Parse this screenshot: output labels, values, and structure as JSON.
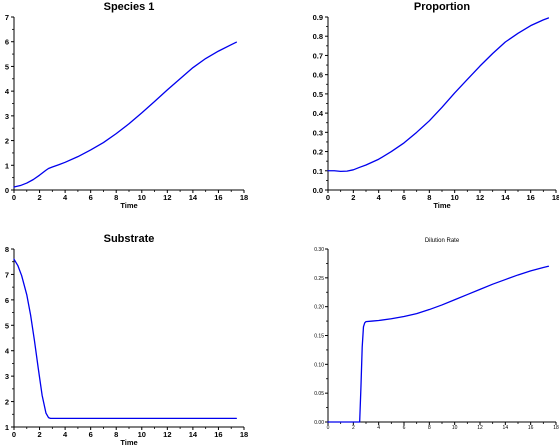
{
  "chart_data": [
    {
      "type": "line",
      "title": "Species 1",
      "xlabel": "Time",
      "ylabel": "",
      "xlim": [
        0,
        18
      ],
      "ylim": [
        0,
        7
      ],
      "xticks": [
        "0",
        "2",
        "4",
        "6",
        "8",
        "10",
        "12",
        "14",
        "16",
        "18"
      ],
      "yticks": [
        "0",
        "1",
        "2",
        "3",
        "4",
        "5",
        "6",
        "7"
      ],
      "color": "#0000ee",
      "series": [
        {
          "x": [
            0,
            0.5,
            1.0,
            1.5,
            2.0,
            2.5,
            2.7,
            3.0,
            3.5,
            4.0,
            5.0,
            6.0,
            7.0,
            8.0,
            9.0,
            10.0,
            11.0,
            12.0,
            13.0,
            14.0,
            15.0,
            16.0,
            17.0,
            17.4
          ],
          "y": [
            0.12,
            0.18,
            0.28,
            0.42,
            0.6,
            0.8,
            0.87,
            0.93,
            1.02,
            1.12,
            1.35,
            1.62,
            1.92,
            2.28,
            2.68,
            3.12,
            3.58,
            4.05,
            4.5,
            4.95,
            5.32,
            5.62,
            5.88,
            5.98
          ]
        }
      ]
    },
    {
      "type": "line",
      "title": "Proportion",
      "xlabel": "Time",
      "ylabel": "",
      "xlim": [
        0,
        18
      ],
      "ylim": [
        0,
        0.9
      ],
      "xticks": [
        "0",
        "2",
        "4",
        "6",
        "8",
        "10",
        "12",
        "14",
        "16",
        "18"
      ],
      "yticks": [
        "0.0",
        "0.1",
        "0.2",
        "0.3",
        "0.4",
        "0.5",
        "0.6",
        "0.7",
        "0.8",
        "0.9"
      ],
      "color": "#0000ee",
      "series": [
        {
          "x": [
            0,
            0.5,
            1.0,
            1.5,
            2.0,
            2.5,
            3.0,
            4.0,
            5.0,
            6.0,
            7.0,
            8.0,
            9.0,
            10.0,
            11.0,
            12.0,
            13.0,
            14.0,
            15.0,
            16.0,
            17.0,
            17.4
          ],
          "y": [
            0.1,
            0.1,
            0.097,
            0.098,
            0.105,
            0.118,
            0.13,
            0.16,
            0.2,
            0.245,
            0.3,
            0.36,
            0.43,
            0.505,
            0.575,
            0.645,
            0.71,
            0.77,
            0.815,
            0.855,
            0.885,
            0.895
          ]
        }
      ]
    },
    {
      "type": "line",
      "title": "Substrate",
      "xlabel": "Time",
      "ylabel": "",
      "xlim": [
        0,
        18
      ],
      "ylim": [
        1,
        8
      ],
      "xticks": [
        "0",
        "2",
        "4",
        "6",
        "8",
        "10",
        "12",
        "14",
        "16",
        "18"
      ],
      "yticks": [
        "1",
        "2",
        "3",
        "4",
        "5",
        "6",
        "7",
        "8"
      ],
      "color": "#0000ee",
      "series": [
        {
          "x": [
            0,
            0.3,
            0.6,
            1.0,
            1.3,
            1.6,
            1.9,
            2.2,
            2.5,
            2.7,
            2.85,
            3.0,
            4.0,
            6.0,
            8.0,
            10.0,
            12.0,
            14.0,
            16.0,
            17.4
          ],
          "y": [
            7.6,
            7.35,
            6.95,
            6.2,
            5.4,
            4.4,
            3.3,
            2.25,
            1.55,
            1.37,
            1.34,
            1.34,
            1.34,
            1.34,
            1.34,
            1.34,
            1.34,
            1.34,
            1.34,
            1.34
          ]
        }
      ]
    },
    {
      "type": "line",
      "title": "Dilution Rate",
      "xlabel": "",
      "ylabel": "",
      "xlim": [
        0,
        18
      ],
      "ylim": [
        0,
        0.3
      ],
      "xticks": [
        "0",
        "2",
        "4",
        "6",
        "8",
        "10",
        "12",
        "14",
        "16",
        "18"
      ],
      "yticks": [
        "0.00",
        "0.05",
        "0.10",
        "0.15",
        "0.20",
        "0.25",
        "0.30"
      ],
      "color": "#0000ee",
      "series": [
        {
          "x": [
            0,
            1.0,
            2.0,
            2.5,
            2.6,
            2.7,
            2.8,
            2.9,
            3.0,
            3.5,
            4.0,
            5.0,
            6.0,
            7.0,
            8.0,
            9.0,
            10.0,
            11.0,
            12.0,
            13.0,
            14.0,
            15.0,
            16.0,
            17.0,
            17.4
          ],
          "y": [
            0,
            0,
            0,
            0,
            0.06,
            0.13,
            0.165,
            0.172,
            0.174,
            0.175,
            0.176,
            0.179,
            0.183,
            0.188,
            0.195,
            0.203,
            0.212,
            0.221,
            0.23,
            0.239,
            0.247,
            0.255,
            0.262,
            0.268,
            0.27
          ]
        }
      ]
    }
  ]
}
